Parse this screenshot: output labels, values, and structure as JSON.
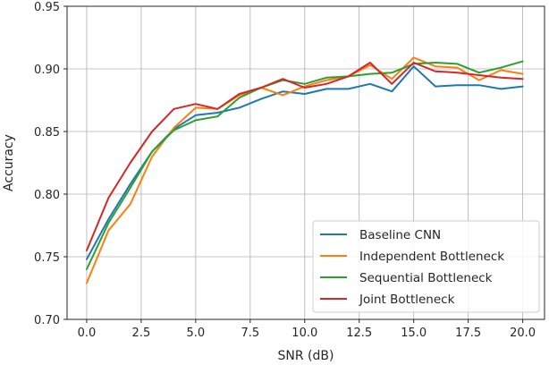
{
  "chart_data": {
    "type": "line",
    "title": "",
    "xlabel": "SNR (dB)",
    "ylabel": "Accuracy",
    "xlim": [
      -0.9,
      21
    ],
    "ylim": [
      0.7,
      0.95
    ],
    "xticks": [
      0.0,
      2.5,
      5.0,
      7.5,
      10.0,
      12.5,
      15.0,
      17.5,
      20.0
    ],
    "xtick_labels": [
      "0.0",
      "2.5",
      "5.0",
      "7.5",
      "10.0",
      "12.5",
      "15.0",
      "17.5",
      "20.0"
    ],
    "yticks": [
      0.7,
      0.75,
      0.8,
      0.85,
      0.9,
      0.95
    ],
    "ytick_labels": [
      "0.70",
      "0.75",
      "0.80",
      "0.85",
      "0.90",
      "0.95"
    ],
    "grid": true,
    "legend_position": "bottom-right",
    "x": [
      0,
      1,
      2,
      3,
      4,
      5,
      6,
      7,
      8,
      9,
      10,
      11,
      12,
      13,
      14,
      15,
      16,
      17,
      18,
      19,
      20
    ],
    "series": [
      {
        "name": "Baseline CNN",
        "color": "#1f77b4",
        "values": [
          0.748,
          0.78,
          0.808,
          0.834,
          0.852,
          0.863,
          0.865,
          0.869,
          0.876,
          0.882,
          0.88,
          0.884,
          0.884,
          0.888,
          0.882,
          0.902,
          0.886,
          0.887,
          0.887,
          0.884,
          0.886
        ]
      },
      {
        "name": "Independent Bottleneck",
        "color": "#ff7f0e",
        "values": [
          0.729,
          0.771,
          0.792,
          0.83,
          0.853,
          0.869,
          0.868,
          0.879,
          0.885,
          0.879,
          0.886,
          0.891,
          0.894,
          0.903,
          0.892,
          0.909,
          0.902,
          0.901,
          0.891,
          0.899,
          0.896
        ]
      },
      {
        "name": "Sequential Bottleneck",
        "color": "#2ca02c",
        "values": [
          0.74,
          0.777,
          0.805,
          0.834,
          0.851,
          0.859,
          0.862,
          0.877,
          0.885,
          0.891,
          0.888,
          0.893,
          0.894,
          0.896,
          0.897,
          0.904,
          0.905,
          0.904,
          0.897,
          0.901,
          0.906
        ]
      },
      {
        "name": "Joint Bottleneck",
        "color": "#d62728",
        "values": [
          0.755,
          0.797,
          0.825,
          0.85,
          0.868,
          0.872,
          0.868,
          0.88,
          0.885,
          0.892,
          0.885,
          0.888,
          0.894,
          0.905,
          0.888,
          0.905,
          0.898,
          0.897,
          0.895,
          0.893,
          0.892
        ]
      }
    ]
  }
}
